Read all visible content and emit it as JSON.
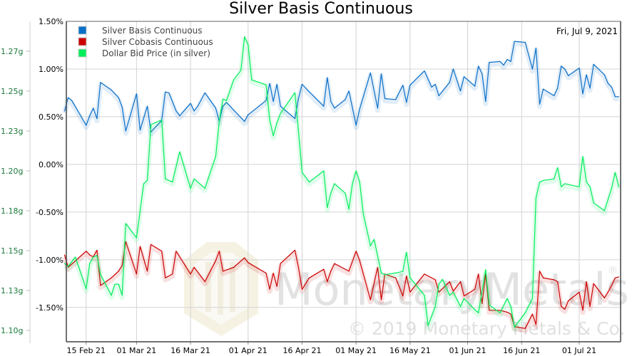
{
  "chart_data": {
    "type": "line",
    "title": "Silver Basis Continuous",
    "date_label": "Fri, Jul 9, 2021",
    "x_unit": "days relative to 15 Feb 21",
    "xlim": [
      -5.5,
      148.5
    ],
    "x_ticks": [
      {
        "day": 0,
        "label": "15 Feb 21"
      },
      {
        "day": 14,
        "label": "01 Mar 21"
      },
      {
        "day": 29,
        "label": "16 Mar 21"
      },
      {
        "day": 45,
        "label": "01 Apr 21"
      },
      {
        "day": 60,
        "label": "16 Apr 21"
      },
      {
        "day": 75,
        "label": "01 May 21"
      },
      {
        "day": 90,
        "label": "16 May 21"
      },
      {
        "day": 106,
        "label": "01 Jun 21"
      },
      {
        "day": 121,
        "label": "16 Jun 21"
      },
      {
        "day": 137,
        "label": "01 Jul 21"
      }
    ],
    "y_left": {
      "unit": "%",
      "ylim": [
        -1.86,
        1.5
      ],
      "ticks": [
        {
          "value": 1.5,
          "label": "1.50%"
        },
        {
          "value": 1.0,
          "label": "1.00%"
        },
        {
          "value": 0.5,
          "label": "0.50%"
        },
        {
          "value": 0.0,
          "label": "0.00%"
        },
        {
          "value": -0.5,
          "label": "-0.50%"
        },
        {
          "value": -1.0,
          "label": "-1.00%"
        },
        {
          "value": -1.5,
          "label": "-1.50%"
        }
      ]
    },
    "y_secondary": {
      "unit": "g",
      "ylim": [
        1.0929,
        1.2937
      ],
      "ticks": [
        {
          "value": 1.275,
          "label": "1.27g"
        },
        {
          "value": 1.25,
          "label": "1.25g"
        },
        {
          "value": 1.225,
          "label": "1.23g"
        },
        {
          "value": 1.2,
          "label": "1.20g"
        },
        {
          "value": 1.175,
          "label": "1.18g"
        },
        {
          "value": 1.15,
          "label": "1.15g"
        },
        {
          "value": 1.125,
          "label": "1.13g"
        },
        {
          "value": 1.1,
          "label": "1.10g"
        }
      ]
    },
    "grid": true,
    "legend_position": "top-left",
    "series": [
      {
        "name": "Silver Basis Continuous",
        "color": "#0a6fc8",
        "axis": "left",
        "points": [
          [
            -6,
            0.56
          ],
          [
            -5,
            0.7
          ],
          [
            -4,
            0.67
          ],
          [
            0,
            0.41
          ],
          [
            1,
            0.51
          ],
          [
            2,
            0.59
          ],
          [
            3,
            0.48
          ],
          [
            4,
            0.86
          ],
          [
            7,
            0.78
          ],
          [
            9,
            0.7
          ],
          [
            10,
            0.6
          ],
          [
            11,
            0.35
          ],
          [
            14,
            0.74
          ],
          [
            15,
            0.36
          ],
          [
            17,
            0.61
          ],
          [
            18,
            0.34
          ],
          [
            21,
            0.46
          ],
          [
            22,
            0.76
          ],
          [
            23,
            0.75
          ],
          [
            25,
            0.56
          ],
          [
            26,
            0.51
          ],
          [
            29,
            0.64
          ],
          [
            30,
            0.56
          ],
          [
            31,
            0.61
          ],
          [
            33,
            0.75
          ],
          [
            36,
            0.59
          ],
          [
            37,
            0.45
          ],
          [
            38,
            0.61
          ],
          [
            39,
            0.65
          ],
          [
            41,
            0.57
          ],
          [
            44,
            0.45
          ],
          [
            45,
            0.52
          ],
          [
            50,
            0.67
          ],
          [
            51,
            0.85
          ],
          [
            52,
            0.66
          ],
          [
            53,
            0.84
          ],
          [
            54,
            0.61
          ],
          [
            58,
            0.48
          ],
          [
            59,
            0.69
          ],
          [
            60,
            0.84
          ],
          [
            62,
            0.76
          ],
          [
            66,
            0.61
          ],
          [
            67,
            0.91
          ],
          [
            68,
            0.66
          ],
          [
            69,
            0.59
          ],
          [
            71,
            0.65
          ],
          [
            72,
            0.68
          ],
          [
            73,
            0.77
          ],
          [
            75,
            0.41
          ],
          [
            76,
            0.58
          ],
          [
            79,
            0.96
          ],
          [
            81,
            0.59
          ],
          [
            82,
            0.95
          ],
          [
            83,
            0.69
          ],
          [
            86,
            0.68
          ],
          [
            88,
            0.83
          ],
          [
            89,
            0.65
          ],
          [
            90,
            0.83
          ],
          [
            94,
            0.98
          ],
          [
            96,
            0.81
          ],
          [
            97,
            0.84
          ],
          [
            98,
            0.72
          ],
          [
            101,
            0.86
          ],
          [
            102,
            1.0
          ],
          [
            104,
            0.77
          ],
          [
            105,
            0.92
          ],
          [
            108,
            0.82
          ],
          [
            109,
            1.03
          ],
          [
            110,
            0.95
          ],
          [
            111,
            0.66
          ],
          [
            112,
            1.07
          ],
          [
            115,
            1.08
          ],
          [
            116,
            1.04
          ],
          [
            117,
            1.1
          ],
          [
            118,
            1.08
          ],
          [
            119,
            1.29
          ],
          [
            122,
            1.28
          ],
          [
            124,
            1.0
          ],
          [
            125,
            1.22
          ],
          [
            126,
            0.63
          ],
          [
            127,
            0.79
          ],
          [
            130,
            0.72
          ],
          [
            131,
            0.8
          ],
          [
            132,
            1.03
          ],
          [
            133,
            1.0
          ],
          [
            134,
            0.93
          ],
          [
            137,
            1.01
          ],
          [
            138,
            0.74
          ],
          [
            139,
            0.94
          ],
          [
            140,
            0.8
          ],
          [
            141,
            1.05
          ],
          [
            144,
            0.94
          ],
          [
            145,
            0.85
          ],
          [
            146,
            0.81
          ],
          [
            147,
            0.71
          ],
          [
            148,
            0.71
          ]
        ]
      },
      {
        "name": "Silver Cobasis Continuous",
        "color": "#cc0000",
        "axis": "left",
        "points": [
          [
            -6,
            -0.95
          ],
          [
            -5,
            -1.08
          ],
          [
            0,
            -0.91
          ],
          [
            1,
            -0.95
          ],
          [
            2,
            -0.97
          ],
          [
            3,
            -0.9
          ],
          [
            4,
            -1.27
          ],
          [
            7,
            -1.19
          ],
          [
            9,
            -1.12
          ],
          [
            10,
            -1.06
          ],
          [
            11,
            -0.81
          ],
          [
            14,
            -1.15
          ],
          [
            15,
            -0.86
          ],
          [
            17,
            -1.12
          ],
          [
            18,
            -0.84
          ],
          [
            21,
            -0.91
          ],
          [
            22,
            -1.19
          ],
          [
            24,
            -1.15
          ],
          [
            25,
            -0.91
          ],
          [
            29,
            -1.15
          ],
          [
            30,
            -1.08
          ],
          [
            33,
            -1.23
          ],
          [
            36,
            -1.01
          ],
          [
            37,
            -0.91
          ],
          [
            38,
            -1.12
          ],
          [
            41,
            -1.08
          ],
          [
            44,
            -0.98
          ],
          [
            45,
            -1.03
          ],
          [
            50,
            -1.14
          ],
          [
            51,
            -1.31
          ],
          [
            52,
            -1.14
          ],
          [
            53,
            -1.28
          ],
          [
            54,
            -1.04
          ],
          [
            58,
            -0.9
          ],
          [
            59,
            -1.08
          ],
          [
            60,
            -1.31
          ],
          [
            62,
            -1.19
          ],
          [
            66,
            -1.1
          ],
          [
            67,
            -1.23
          ],
          [
            68,
            -1.12
          ],
          [
            69,
            -1.04
          ],
          [
            73,
            -1.12
          ],
          [
            75,
            -0.91
          ],
          [
            76,
            -1.01
          ],
          [
            79,
            -1.42
          ],
          [
            81,
            -1.08
          ],
          [
            82,
            -1.42
          ],
          [
            83,
            -1.15
          ],
          [
            86,
            -1.19
          ],
          [
            88,
            -1.38
          ],
          [
            89,
            -1.17
          ],
          [
            90,
            -1.34
          ],
          [
            94,
            -1.15
          ],
          [
            97,
            -1.21
          ],
          [
            98,
            -1.34
          ],
          [
            101,
            -1.23
          ],
          [
            102,
            -1.33
          ],
          [
            104,
            -1.23
          ],
          [
            105,
            -1.38
          ],
          [
            108,
            -1.31
          ],
          [
            109,
            -1.15
          ],
          [
            110,
            -1.46
          ],
          [
            111,
            -1.15
          ],
          [
            112,
            -1.53
          ],
          [
            115,
            -1.53
          ],
          [
            117,
            -1.55
          ],
          [
            118,
            -1.57
          ],
          [
            119,
            -1.7
          ],
          [
            122,
            -1.72
          ],
          [
            124,
            -1.57
          ],
          [
            125,
            -1.68
          ],
          [
            126,
            -1.12
          ],
          [
            127,
            -1.19
          ],
          [
            130,
            -1.21
          ],
          [
            131,
            -1.23
          ],
          [
            132,
            -1.49
          ],
          [
            133,
            -1.52
          ],
          [
            134,
            -1.43
          ],
          [
            137,
            -1.34
          ],
          [
            138,
            -1.53
          ],
          [
            139,
            -1.23
          ],
          [
            140,
            -1.49
          ],
          [
            141,
            -1.25
          ],
          [
            144,
            -1.4
          ],
          [
            145,
            -1.34
          ],
          [
            146,
            -1.27
          ],
          [
            147,
            -1.19
          ],
          [
            148,
            -1.18
          ]
        ]
      },
      {
        "name": "Dollar Bid Price (in silver)",
        "color": "#00ee5a",
        "axis": "secondary",
        "points": [
          [
            -6,
            1.142
          ],
          [
            -5,
            1.14
          ],
          [
            -3,
            1.146
          ],
          [
            0,
            1.126
          ],
          [
            1,
            1.142
          ],
          [
            2,
            1.146
          ],
          [
            3,
            1.147
          ],
          [
            4,
            1.135
          ],
          [
            7,
            1.122
          ],
          [
            8,
            1.129
          ],
          [
            9,
            1.129
          ],
          [
            10,
            1.122
          ],
          [
            11,
            1.167
          ],
          [
            14,
            1.158
          ],
          [
            16,
            1.192
          ],
          [
            17,
            1.194
          ],
          [
            18,
            1.229
          ],
          [
            21,
            1.232
          ],
          [
            22,
            1.195
          ],
          [
            24,
            1.193
          ],
          [
            26,
            1.212
          ],
          [
            29,
            1.189
          ],
          [
            30,
            1.195
          ],
          [
            33,
            1.189
          ],
          [
            36,
            1.209
          ],
          [
            37,
            1.231
          ],
          [
            38,
            1.245
          ],
          [
            39,
            1.244
          ],
          [
            41,
            1.257
          ],
          [
            43,
            1.263
          ],
          [
            44,
            1.284
          ],
          [
            45,
            1.279
          ],
          [
            46,
            1.257
          ],
          [
            50,
            1.254
          ],
          [
            51,
            1.232
          ],
          [
            52,
            1.222
          ],
          [
            53,
            1.23
          ],
          [
            54,
            1.236
          ],
          [
            58,
            1.249
          ],
          [
            59,
            1.225
          ],
          [
            60,
            1.199
          ],
          [
            62,
            1.193
          ],
          [
            66,
            1.2
          ],
          [
            67,
            1.177
          ],
          [
            68,
            1.186
          ],
          [
            69,
            1.192
          ],
          [
            72,
            1.186
          ],
          [
            73,
            1.176
          ],
          [
            74,
            1.192
          ],
          [
            75,
            1.2
          ],
          [
            76,
            1.193
          ],
          [
            77,
            1.173
          ],
          [
            79,
            1.153
          ],
          [
            80,
            1.157
          ],
          [
            82,
            1.136
          ],
          [
            83,
            1.135
          ],
          [
            86,
            1.136
          ],
          [
            88,
            1.137
          ],
          [
            89,
            1.149
          ],
          [
            90,
            1.133
          ],
          [
            94,
            1.122
          ],
          [
            95,
            1.103
          ],
          [
            97,
            1.115
          ],
          [
            98,
            1.129
          ],
          [
            99,
            1.132
          ],
          [
            101,
            1.122
          ],
          [
            102,
            1.124
          ],
          [
            104,
            1.115
          ],
          [
            105,
            1.12
          ],
          [
            108,
            1.113
          ],
          [
            109,
            1.111
          ],
          [
            111,
            1.138
          ],
          [
            112,
            1.116
          ],
          [
            115,
            1.111
          ],
          [
            117,
            1.12
          ],
          [
            118,
            1.115
          ],
          [
            119,
            1.102
          ],
          [
            122,
            1.111
          ],
          [
            124,
            1.12
          ],
          [
            125,
            1.183
          ],
          [
            126,
            1.193
          ],
          [
            127,
            1.194
          ],
          [
            130,
            1.195
          ],
          [
            131,
            1.202
          ],
          [
            132,
            1.19
          ],
          [
            133,
            1.192
          ],
          [
            137,
            1.19
          ],
          [
            138,
            1.209
          ],
          [
            139,
            1.193
          ],
          [
            140,
            1.19
          ],
          [
            141,
            1.18
          ],
          [
            144,
            1.175
          ],
          [
            146,
            1.189
          ],
          [
            147,
            1.199
          ],
          [
            148,
            1.19
          ]
        ]
      }
    ],
    "watermark": {
      "logo_text": "MonetaryMetals",
      "registered": "®",
      "copyright": "© 2019 Monetary Metals & Co."
    }
  }
}
